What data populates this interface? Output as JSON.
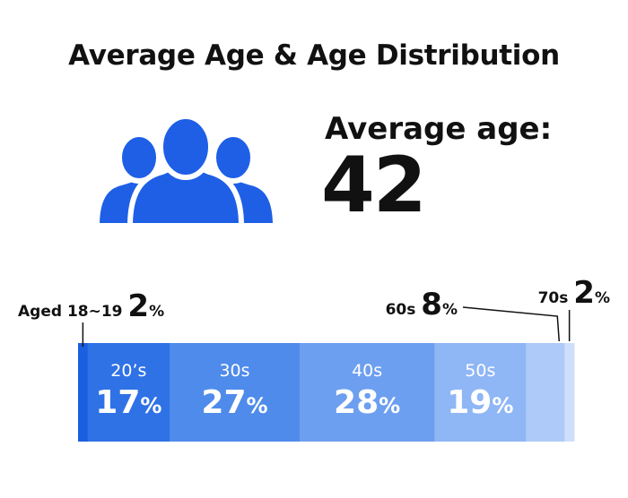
{
  "title": "Average Age & Age Distribution",
  "icon": "people-group-icon",
  "average": {
    "label": "Average age:",
    "value": "42"
  },
  "colors": {
    "icon": "#1e5fe6",
    "segments": [
      "#1a5fe0",
      "#2f72e6",
      "#4f8bea",
      "#6d9ff0",
      "#8fb6f5",
      "#aecaf8",
      "#cfdffb"
    ]
  },
  "chart_data": {
    "type": "bar",
    "orientation": "horizontal-stacked",
    "title": "Average Age & Age Distribution",
    "unit": "%",
    "categories": [
      "Aged 18~19",
      "20’s",
      "30s",
      "40s",
      "50s",
      "60s",
      "70s"
    ],
    "values": [
      2,
      17,
      27,
      28,
      19,
      8,
      2
    ],
    "label_placement": [
      "outside",
      "inside",
      "inside",
      "inside",
      "inside",
      "outside",
      "outside"
    ]
  }
}
